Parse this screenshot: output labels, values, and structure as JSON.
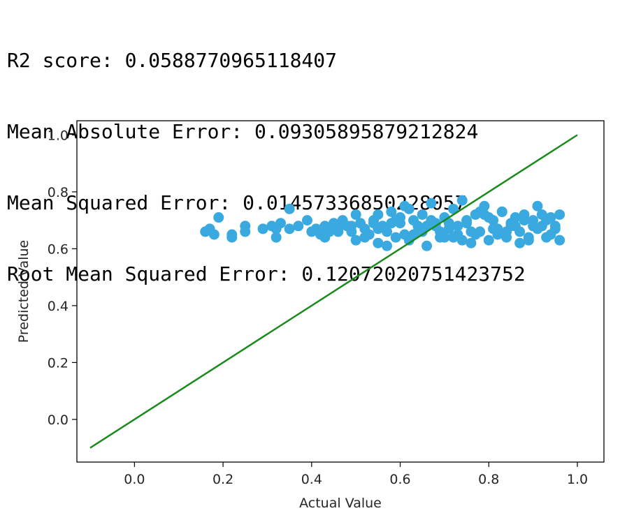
{
  "metrics": {
    "r2": "R2 score: 0.0588770965118407",
    "mae": "Mean Absolute Error: 0.09305895879212824",
    "mse": "Mean Squared Error: 0.01457336850228057",
    "rmse": "Root Mean Squared Error: 0.12072020751423752"
  },
  "colors": {
    "points": "#3aa9df",
    "line": "#1a8a1a",
    "axes": "#000000"
  },
  "chart_data": {
    "type": "scatter",
    "title": "",
    "xlabel": "Actual Value",
    "ylabel": "Predicted Value",
    "xlim": [
      -0.13,
      1.06
    ],
    "ylim": [
      -0.15,
      1.05
    ],
    "xticks": [
      0.0,
      0.2,
      0.4,
      0.6,
      0.8,
      1.0
    ],
    "yticks": [
      0.0,
      0.2,
      0.4,
      0.6,
      0.8,
      1.0
    ],
    "xtick_labels": [
      "0.0",
      "0.2",
      "0.4",
      "0.6",
      "0.8",
      "1.0"
    ],
    "ytick_labels": [
      "0.0",
      "0.2",
      "0.4",
      "0.6",
      "0.8",
      "1.0"
    ],
    "grid": false,
    "reference_line": {
      "x": [
        -0.1,
        1.0
      ],
      "y": [
        -0.1,
        1.0
      ]
    },
    "points": {
      "x": [
        0.16,
        0.17,
        0.18,
        0.19,
        0.22,
        0.22,
        0.25,
        0.25,
        0.29,
        0.31,
        0.32,
        0.32,
        0.33,
        0.35,
        0.35,
        0.37,
        0.39,
        0.4,
        0.41,
        0.42,
        0.43,
        0.44,
        0.45,
        0.46,
        0.47,
        0.48,
        0.49,
        0.5,
        0.51,
        0.52,
        0.53,
        0.54,
        0.55,
        0.55,
        0.56,
        0.57,
        0.58,
        0.59,
        0.6,
        0.61,
        0.62,
        0.63,
        0.64,
        0.65,
        0.66,
        0.67,
        0.68,
        0.69,
        0.7,
        0.71,
        0.72,
        0.73,
        0.74,
        0.75,
        0.76,
        0.77,
        0.78,
        0.79,
        0.8,
        0.81,
        0.82,
        0.83,
        0.84,
        0.85,
        0.86,
        0.87,
        0.88,
        0.89,
        0.9,
        0.91,
        0.92,
        0.93,
        0.94,
        0.95,
        0.96,
        0.96,
        0.43,
        0.46,
        0.49,
        0.52,
        0.55,
        0.58,
        0.61,
        0.64,
        0.67,
        0.7,
        0.73,
        0.76,
        0.79,
        0.82,
        0.85,
        0.88,
        0.91,
        0.94,
        0.57,
        0.63,
        0.69,
        0.75,
        0.81,
        0.87,
        0.93,
        0.6,
        0.66,
        0.72,
        0.78,
        0.84,
        0.9,
        0.54,
        0.62,
        0.68,
        0.74,
        0.8,
        0.86,
        0.92,
        0.65,
        0.71,
        0.77,
        0.83,
        0.89,
        0.95,
        0.5,
        0.59
      ],
      "y": [
        0.66,
        0.67,
        0.65,
        0.71,
        0.64,
        0.65,
        0.68,
        0.66,
        0.67,
        0.68,
        0.64,
        0.67,
        0.69,
        0.74,
        0.67,
        0.68,
        0.7,
        0.66,
        0.67,
        0.65,
        0.68,
        0.66,
        0.69,
        0.67,
        0.7,
        0.68,
        0.66,
        0.72,
        0.69,
        0.67,
        0.65,
        0.7,
        0.62,
        0.72,
        0.68,
        0.66,
        0.73,
        0.64,
        0.69,
        0.75,
        0.63,
        0.7,
        0.66,
        0.72,
        0.61,
        0.76,
        0.68,
        0.64,
        0.71,
        0.67,
        0.74,
        0.65,
        0.77,
        0.69,
        0.62,
        0.72,
        0.66,
        0.75,
        0.63,
        0.7,
        0.67,
        0.73,
        0.64,
        0.69,
        0.71,
        0.66,
        0.72,
        0.64,
        0.7,
        0.75,
        0.68,
        0.64,
        0.71,
        0.67,
        0.72,
        0.63,
        0.64,
        0.66,
        0.68,
        0.64,
        0.67,
        0.69,
        0.65,
        0.68,
        0.7,
        0.64,
        0.68,
        0.66,
        0.72,
        0.65,
        0.68,
        0.7,
        0.67,
        0.65,
        0.61,
        0.65,
        0.66,
        0.7,
        0.67,
        0.62,
        0.7,
        0.71,
        0.68,
        0.64,
        0.73,
        0.66,
        0.68,
        0.69,
        0.74,
        0.69,
        0.63,
        0.71,
        0.68,
        0.72,
        0.66,
        0.69,
        0.65,
        0.73,
        0.63,
        0.68,
        0.63,
        0.7
      ]
    }
  }
}
